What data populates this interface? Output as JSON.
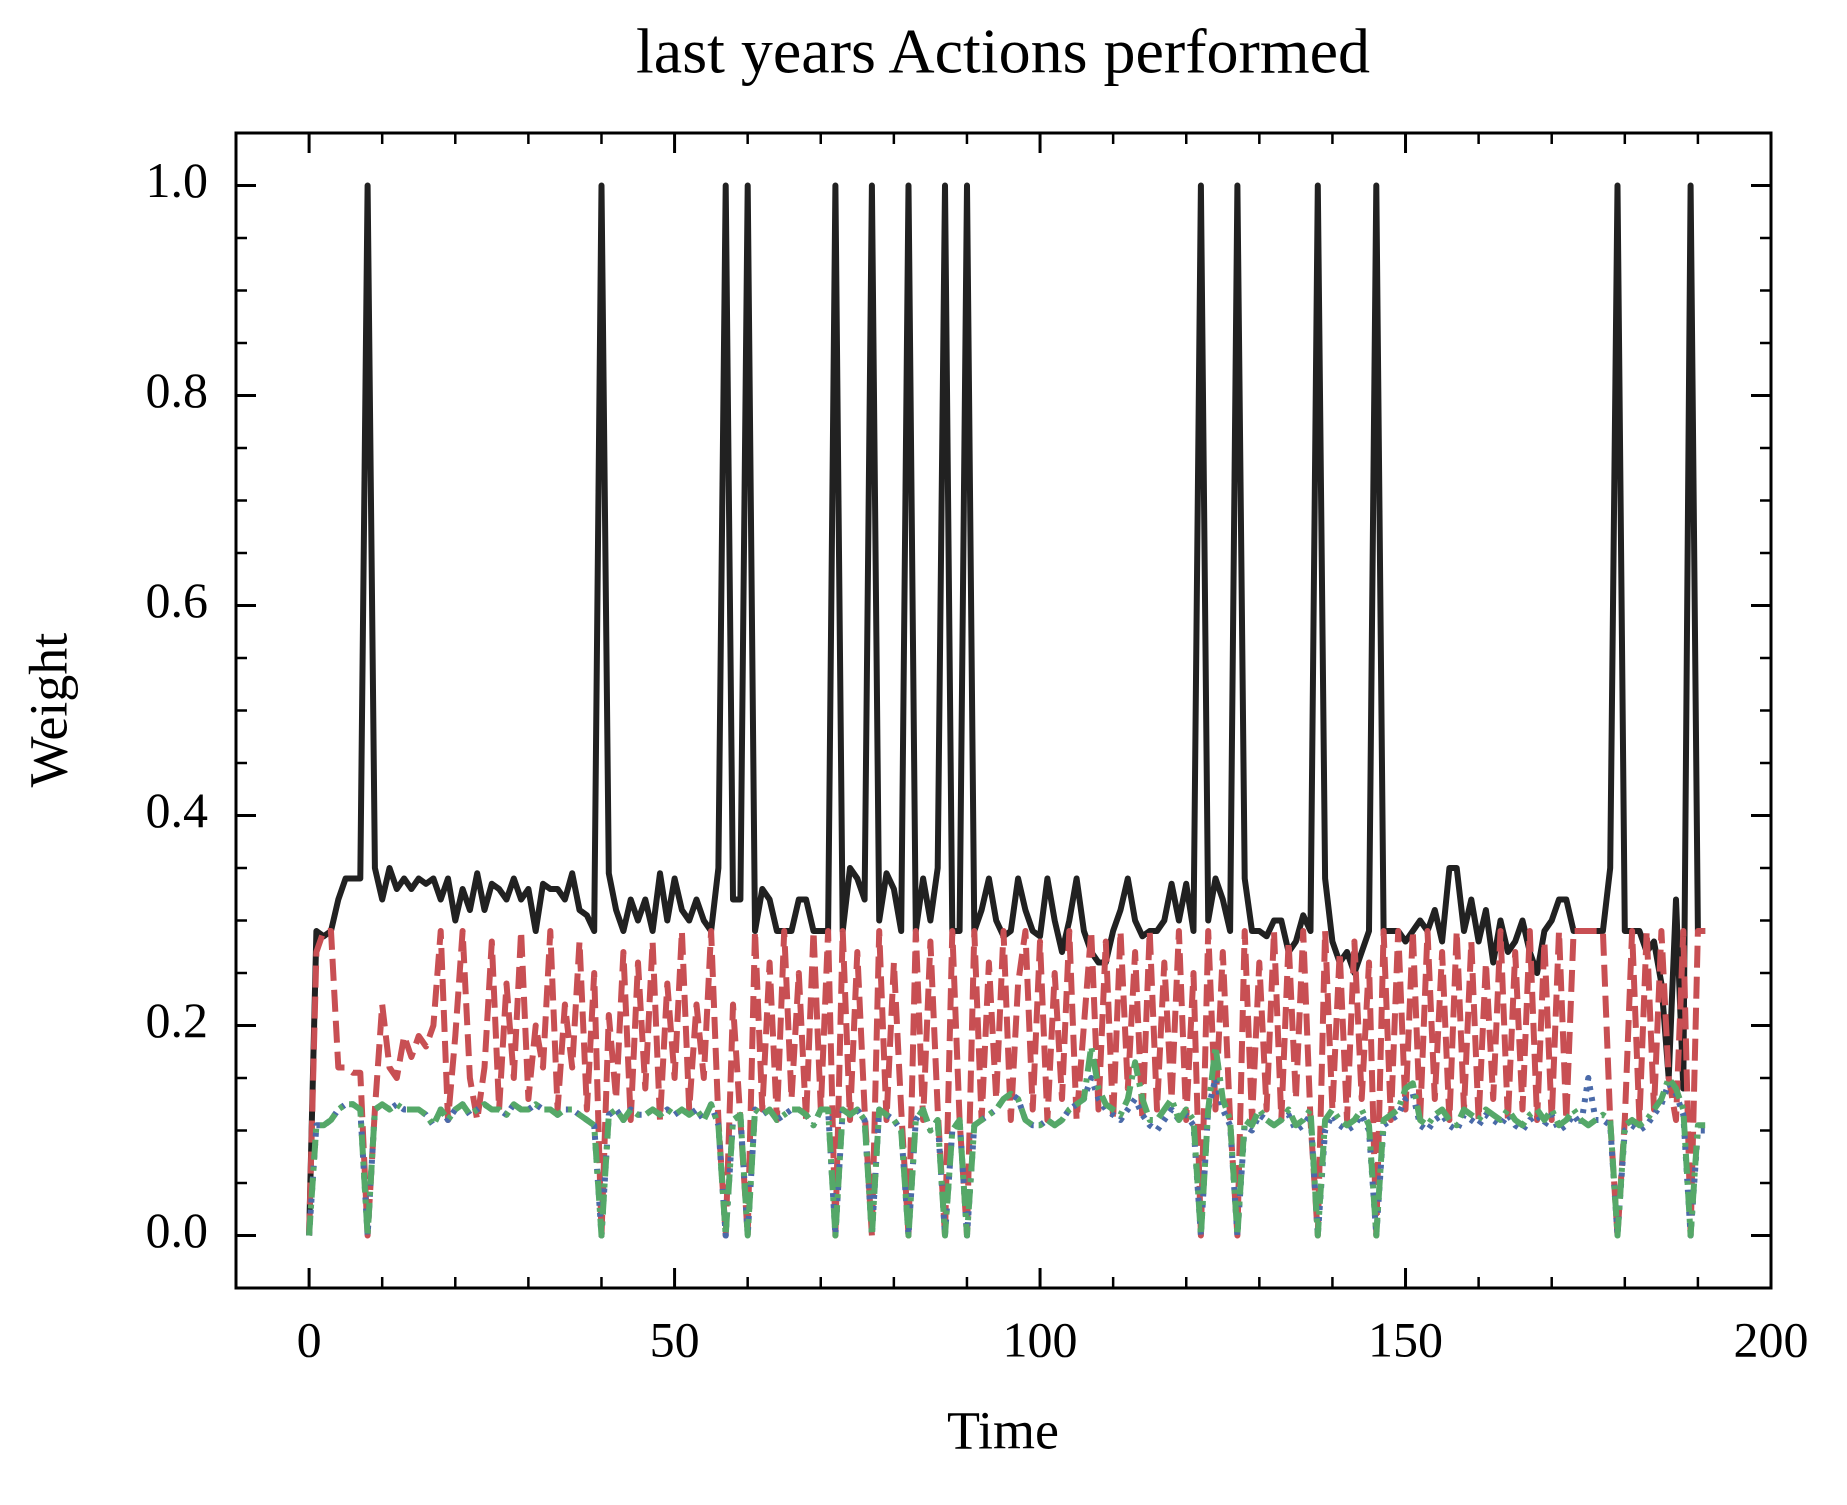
{
  "chart_data": {
    "type": "line",
    "title": "last years Actions performed",
    "xlabel": "Time",
    "ylabel": "Weight",
    "xlim": [
      -10,
      200
    ],
    "ylim": [
      -0.05,
      1.05
    ],
    "xticks": [
      0,
      50,
      100,
      150,
      200
    ],
    "yticks": [
      {
        "value": 0,
        "label": "0.0"
      },
      0.2,
      0.4,
      0.6,
      0.8,
      {
        "value": 1,
        "label": "1.0"
      }
    ],
    "x": [
      0,
      1,
      2,
      3,
      4,
      5,
      6,
      7,
      8,
      9,
      10,
      11,
      12,
      13,
      14,
      15,
      16,
      17,
      18,
      19,
      20,
      21,
      22,
      23,
      24,
      25,
      26,
      27,
      28,
      29,
      30,
      31,
      32,
      33,
      34,
      35,
      36,
      37,
      38,
      39,
      40,
      41,
      42,
      43,
      44,
      45,
      46,
      47,
      48,
      49,
      50,
      51,
      52,
      53,
      54,
      55,
      56,
      57,
      58,
      59,
      60,
      61,
      62,
      63,
      64,
      65,
      66,
      67,
      68,
      69,
      70,
      71,
      72,
      73,
      74,
      75,
      76,
      77,
      78,
      79,
      80,
      81,
      82,
      83,
      84,
      85,
      86,
      87,
      88,
      89,
      90,
      91,
      92,
      93,
      94,
      95,
      96,
      97,
      98,
      99,
      100,
      101,
      102,
      103,
      104,
      105,
      106,
      107,
      108,
      109,
      110,
      111,
      112,
      113,
      114,
      115,
      116,
      117,
      118,
      119,
      120,
      121,
      122,
      123,
      124,
      125,
      126,
      127,
      128,
      129,
      130,
      131,
      132,
      133,
      134,
      135,
      136,
      137,
      138,
      139,
      140,
      141,
      142,
      143,
      144,
      145,
      146,
      147,
      148,
      149,
      150,
      151,
      152,
      153,
      154,
      155,
      156,
      157,
      158,
      159,
      160,
      161,
      162,
      163,
      164,
      165,
      166,
      167,
      168,
      169,
      170,
      171,
      172,
      173,
      174,
      175,
      176,
      177,
      178,
      179,
      180,
      181,
      182,
      183,
      184,
      185,
      186,
      187,
      188,
      189,
      190,
      191
    ],
    "series": [
      {
        "color": "#212121",
        "linestyle": "solid",
        "values": [
          0,
          0.29,
          0.285,
          0.29,
          0.32,
          0.34,
          0.34,
          0.34,
          1.0,
          0.35,
          0.32,
          0.35,
          0.33,
          0.34,
          0.33,
          0.34,
          0.335,
          0.34,
          0.32,
          0.34,
          0.3,
          0.33,
          0.31,
          0.345,
          0.31,
          0.335,
          0.33,
          0.32,
          0.34,
          0.32,
          0.33,
          0.29,
          0.335,
          0.33,
          0.33,
          0.32,
          0.345,
          0.31,
          0.305,
          0.29,
          1.0,
          0.345,
          0.31,
          0.29,
          0.32,
          0.3,
          0.32,
          0.29,
          0.345,
          0.3,
          0.34,
          0.31,
          0.3,
          0.32,
          0.3,
          0.29,
          0.35,
          1.0,
          0.32,
          0.32,
          1.0,
          0.29,
          0.33,
          0.32,
          0.29,
          0.29,
          0.29,
          0.32,
          0.32,
          0.29,
          0.29,
          0.29,
          1.0,
          0.29,
          0.35,
          0.34,
          0.32,
          1.0,
          0.3,
          0.345,
          0.33,
          0.29,
          1.0,
          0.29,
          0.34,
          0.3,
          0.35,
          1.0,
          0.29,
          0.29,
          1.0,
          0.29,
          0.31,
          0.34,
          0.3,
          0.285,
          0.29,
          0.34,
          0.31,
          0.29,
          0.285,
          0.34,
          0.3,
          0.27,
          0.3,
          0.34,
          0.29,
          0.27,
          0.26,
          0.26,
          0.29,
          0.31,
          0.34,
          0.3,
          0.285,
          0.29,
          0.29,
          0.3,
          0.335,
          0.3,
          0.335,
          0.29,
          1.0,
          0.3,
          0.34,
          0.32,
          0.29,
          1.0,
          0.34,
          0.29,
          0.29,
          0.285,
          0.3,
          0.3,
          0.27,
          0.28,
          0.305,
          0.29,
          1.0,
          0.34,
          0.28,
          0.26,
          0.27,
          0.25,
          0.27,
          0.29,
          1.0,
          0.29,
          0.29,
          0.29,
          0.28,
          0.29,
          0.3,
          0.29,
          0.31,
          0.28,
          0.35,
          0.35,
          0.29,
          0.32,
          0.28,
          0.31,
          0.26,
          0.3,
          0.27,
          0.28,
          0.3,
          0.27,
          0.25,
          0.29,
          0.3,
          0.32,
          0.32,
          0.29,
          0.29,
          0.29,
          0.29,
          0.29,
          0.35,
          1.0,
          0.29,
          0.29,
          0.29,
          0.27,
          0.28,
          0.24,
          0.15,
          0.32,
          0.14,
          1.0,
          0.29,
          0.29
        ]
      },
      {
        "color": "#c84f53",
        "linestyle": "dashed",
        "values": [
          0,
          0.27,
          0.29,
          0.29,
          0.16,
          0.16,
          0.155,
          0.155,
          0,
          0.12,
          0.22,
          0.16,
          0.15,
          0.19,
          0.17,
          0.19,
          0.18,
          0.2,
          0.29,
          0.11,
          0.19,
          0.29,
          0.15,
          0.11,
          0.16,
          0.28,
          0.12,
          0.24,
          0.15,
          0.29,
          0.13,
          0.2,
          0.16,
          0.29,
          0.12,
          0.22,
          0.16,
          0.28,
          0.12,
          0.25,
          0,
          0.21,
          0.13,
          0.27,
          0.11,
          0.26,
          0.14,
          0.28,
          0.11,
          0.24,
          0.15,
          0.29,
          0.12,
          0.22,
          0.15,
          0.29,
          0.11,
          0,
          0.22,
          0.11,
          0,
          0.29,
          0.12,
          0.26,
          0.11,
          0.29,
          0.13,
          0.25,
          0.11,
          0.29,
          0.12,
          0.29,
          0,
          0.29,
          0.11,
          0.27,
          0.12,
          0,
          0.29,
          0.11,
          0.26,
          0.12,
          0,
          0.29,
          0.11,
          0.28,
          0.12,
          0,
          0.29,
          0.11,
          0,
          0.29,
          0.11,
          0.26,
          0.13,
          0.29,
          0.11,
          0.24,
          0.29,
          0.12,
          0.28,
          0.11,
          0.25,
          0.13,
          0.29,
          0.11,
          0.2,
          0.29,
          0.12,
          0.28,
          0.11,
          0.29,
          0.14,
          0.27,
          0.11,
          0.29,
          0.12,
          0.26,
          0.13,
          0.29,
          0.11,
          0.25,
          0,
          0.29,
          0.12,
          0.27,
          0.11,
          0,
          0.29,
          0.11,
          0.26,
          0.12,
          0.29,
          0.11,
          0.28,
          0.13,
          0.29,
          0.11,
          0,
          0.29,
          0.12,
          0.27,
          0.11,
          0.28,
          0.13,
          0.26,
          0,
          0.29,
          0.11,
          0.29,
          0.12,
          0.29,
          0.11,
          0.29,
          0.13,
          0.27,
          0.11,
          0.29,
          0.12,
          0.28,
          0.11,
          0.26,
          0.13,
          0.29,
          0.11,
          0.27,
          0.12,
          0.29,
          0.11,
          0.28,
          0.11,
          0.29,
          0.11,
          0.29,
          0.29,
          0.29,
          0.29,
          0.29,
          0.11,
          0,
          0.11,
          0.29,
          0.11,
          0.29,
          0.12,
          0.29,
          0.15,
          0.11,
          0.29,
          0,
          0.29,
          0.29
        ]
      },
      {
        "color": "#4a6aa9",
        "linestyle": "dotted",
        "values": [
          0,
          0.105,
          0.105,
          0.11,
          0.12,
          0.125,
          0.125,
          0.12,
          0,
          0.12,
          0.125,
          0.12,
          0.125,
          0.12,
          0.12,
          0.12,
          0.115,
          0.105,
          0.12,
          0.11,
          0.12,
          0.125,
          0.115,
          0.12,
          0.125,
          0.12,
          0.12,
          0.115,
          0.125,
          0.12,
          0.12,
          0.125,
          0.12,
          0.12,
          0.115,
          0.12,
          0.12,
          0.115,
          0.11,
          0.105,
          0,
          0.115,
          0.12,
          0.11,
          0.12,
          0.115,
          0.115,
          0.12,
          0.115,
          0.12,
          0.115,
          0.12,
          0.115,
          0.12,
          0.11,
          0.125,
          0.105,
          0,
          0.11,
          0.115,
          0,
          0.12,
          0.115,
          0.12,
          0.11,
          0.115,
          0.12,
          0.12,
          0.115,
          0.105,
          0.12,
          0.12,
          0,
          0.12,
          0.115,
          0.12,
          0.11,
          0,
          0.12,
          0.115,
          0.11,
          0.1,
          0,
          0.11,
          0.12,
          0.1,
          0.11,
          0,
          0.1,
          0.11,
          0,
          0.105,
          0.11,
          0.115,
          0.12,
          0.13,
          0.135,
          0.13,
          0.11,
          0.105,
          0.105,
          0.11,
          0.105,
          0.11,
          0.12,
          0.125,
          0.13,
          0.15,
          0.13,
          0.12,
          0.115,
          0.11,
          0.12,
          0.13,
          0.115,
          0.105,
          0.1,
          0.11,
          0.12,
          0.11,
          0.115,
          0.105,
          0,
          0.12,
          0.15,
          0.12,
          0.105,
          0,
          0.105,
          0.1,
          0.115,
          0.11,
          0.105,
          0.11,
          0.115,
          0.1,
          0.105,
          0.115,
          0,
          0.1,
          0.115,
          0.105,
          0.1,
          0.105,
          0.115,
          0.1,
          0,
          0.105,
          0.11,
          0.115,
          0.13,
          0.135,
          0.105,
          0.1,
          0.11,
          0.115,
          0.105,
          0.1,
          0.115,
          0.11,
          0.105,
          0.115,
          0.11,
          0.105,
          0.115,
          0.105,
          0.1,
          0.11,
          0.115,
          0.105,
          0.115,
          0.1,
          0.105,
          0.115,
          0.105,
          0.15,
          0.11,
          0.11,
          0.105,
          0,
          0.1,
          0.105,
          0.1,
          0.105,
          0.115,
          0.125,
          0.145,
          0.135,
          0.115,
          0,
          0.1,
          0.1
        ]
      },
      {
        "color": "#55a868",
        "linestyle": "dashdot",
        "values": [
          0,
          0.105,
          0.105,
          0.11,
          0.12,
          0.125,
          0.125,
          0.12,
          0,
          0.12,
          0.125,
          0.12,
          0.125,
          0.12,
          0.12,
          0.12,
          0.115,
          0.105,
          0.12,
          0.11,
          0.12,
          0.125,
          0.115,
          0.12,
          0.125,
          0.12,
          0.12,
          0.115,
          0.125,
          0.12,
          0.12,
          0.125,
          0.12,
          0.12,
          0.115,
          0.12,
          0.12,
          0.115,
          0.11,
          0.105,
          0,
          0.115,
          0.12,
          0.11,
          0.12,
          0.115,
          0.115,
          0.12,
          0.115,
          0.12,
          0.115,
          0.12,
          0.115,
          0.12,
          0.11,
          0.125,
          0.105,
          0,
          0.11,
          0.115,
          0,
          0.12,
          0.115,
          0.12,
          0.11,
          0.115,
          0.12,
          0.12,
          0.115,
          0.105,
          0.12,
          0.12,
          0,
          0.12,
          0.115,
          0.12,
          0.11,
          0,
          0.12,
          0.115,
          0.11,
          0.1,
          0,
          0.11,
          0.12,
          0.1,
          0.11,
          0,
          0.1,
          0.11,
          0,
          0.105,
          0.11,
          0.115,
          0.12,
          0.13,
          0.135,
          0.13,
          0.11,
          0.105,
          0.105,
          0.11,
          0.105,
          0.11,
          0.12,
          0.125,
          0.13,
          0.18,
          0.14,
          0.125,
          0.12,
          0.115,
          0.13,
          0.165,
          0.13,
          0.11,
          0.11,
          0.12,
          0.13,
          0.11,
          0.12,
          0.11,
          0,
          0.12,
          0.18,
          0.13,
          0.11,
          0,
          0.11,
          0.105,
          0.12,
          0.11,
          0.105,
          0.11,
          0.12,
          0.105,
          0.11,
          0.12,
          0,
          0.11,
          0.12,
          0.11,
          0.105,
          0.11,
          0.12,
          0.105,
          0,
          0.11,
          0.115,
          0.12,
          0.14,
          0.145,
          0.11,
          0.105,
          0.115,
          0.12,
          0.11,
          0.105,
          0.12,
          0.115,
          0.11,
          0.12,
          0.115,
          0.11,
          0.12,
          0.11,
          0.105,
          0.115,
          0.12,
          0.11,
          0.12,
          0.105,
          0.11,
          0.12,
          0.11,
          0.105,
          0.11,
          0.115,
          0.11,
          0,
          0.105,
          0.11,
          0.105,
          0.11,
          0.12,
          0.13,
          0.15,
          0.14,
          0.12,
          0,
          0.105,
          0.105
        ]
      }
    ]
  }
}
